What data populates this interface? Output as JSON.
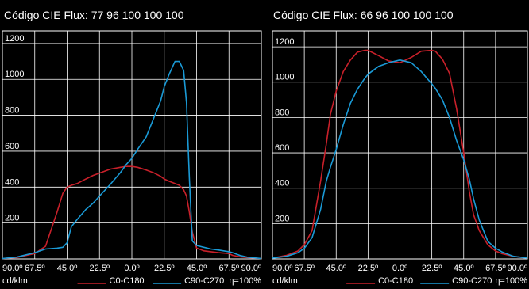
{
  "chart_data": [
    {
      "type": "line",
      "title": "Código CIE Flux: 77  96  100  100  100",
      "x": [
        -90,
        -80,
        -67.5,
        -60,
        -52,
        -48,
        -45,
        -42,
        -38,
        -32,
        -27,
        -22.5,
        -15,
        -8,
        -4,
        0,
        4,
        10,
        15,
        20,
        22.5,
        26,
        30,
        33,
        36,
        38,
        40,
        42,
        45,
        50,
        55,
        60,
        67.5,
        70,
        75,
        80,
        90
      ],
      "series": [
        {
          "name": "C0-C180",
          "color": "#c8202a",
          "values": [
            2,
            8,
            30,
            70,
            260,
            365,
            400,
            410,
            420,
            445,
            465,
            478,
            500,
            510,
            515,
            515,
            510,
            495,
            480,
            460,
            445,
            432,
            420,
            410,
            385,
            350,
            260,
            150,
            60,
            45,
            40,
            35,
            30,
            20,
            12,
            8,
            2
          ]
        },
        {
          "name": "C90-C270",
          "color": "#1a9ad6",
          "values": [
            2,
            10,
            35,
            55,
            60,
            65,
            90,
            180,
            220,
            275,
            310,
            350,
            415,
            480,
            525,
            560,
            610,
            680,
            780,
            880,
            960,
            1030,
            1100,
            1100,
            1050,
            870,
            450,
            100,
            75,
            65,
            55,
            50,
            40,
            35,
            20,
            10,
            2
          ]
        }
      ],
      "yticks": [
        200,
        400,
        600,
        800,
        1000,
        1200
      ],
      "ylim": [
        0,
        1270
      ],
      "xticks": [
        "90.0º",
        "67.5º",
        "45.0º",
        "22.5º",
        "0.0º",
        "22.5º",
        "45.0º",
        "67.5º",
        "90.0º"
      ],
      "ylabel": "cd/klm",
      "footnote": "η=100%",
      "grid": true,
      "legend_position": "bottom"
    },
    {
      "type": "line",
      "title": "Código CIE Flux: 66  96  100  100  100",
      "x": [
        -90,
        -80,
        -72,
        -67.5,
        -62,
        -56,
        -52,
        -49,
        -45,
        -40,
        -35,
        -30,
        -25,
        -22.5,
        -15,
        -8,
        0,
        8,
        15,
        22.5,
        25,
        30,
        35,
        40,
        45,
        49,
        52,
        56,
        62,
        67.5,
        72,
        80,
        90
      ],
      "series": [
        {
          "name": "C0-C180",
          "color": "#c8202a",
          "values": [
            5,
            20,
            45,
            80,
            160,
            440,
            650,
            820,
            950,
            1060,
            1125,
            1170,
            1180,
            1180,
            1150,
            1120,
            1110,
            1140,
            1175,
            1180,
            1175,
            1130,
            1050,
            850,
            600,
            380,
            250,
            160,
            80,
            45,
            30,
            15,
            5
          ]
        },
        {
          "name": "C90-C270",
          "color": "#1a9ad6",
          "values": [
            5,
            15,
            35,
            60,
            120,
            280,
            440,
            520,
            620,
            760,
            880,
            960,
            1020,
            1045,
            1090,
            1110,
            1125,
            1110,
            1060,
            990,
            965,
            900,
            800,
            670,
            560,
            450,
            340,
            220,
            100,
            60,
            40,
            15,
            5
          ]
        }
      ],
      "yticks": [
        200,
        400,
        600,
        800,
        1000,
        1200
      ],
      "ylim": [
        0,
        1290
      ],
      "xticks": [
        "90.0º",
        "67.5º",
        "45.0º",
        "22.5º",
        "0.0º",
        "22.5º",
        "45.0º",
        "67.5º",
        "90.0º"
      ],
      "ylabel": "cd/klm",
      "footnote": "η=100%",
      "grid": true,
      "legend_position": "bottom"
    }
  ]
}
